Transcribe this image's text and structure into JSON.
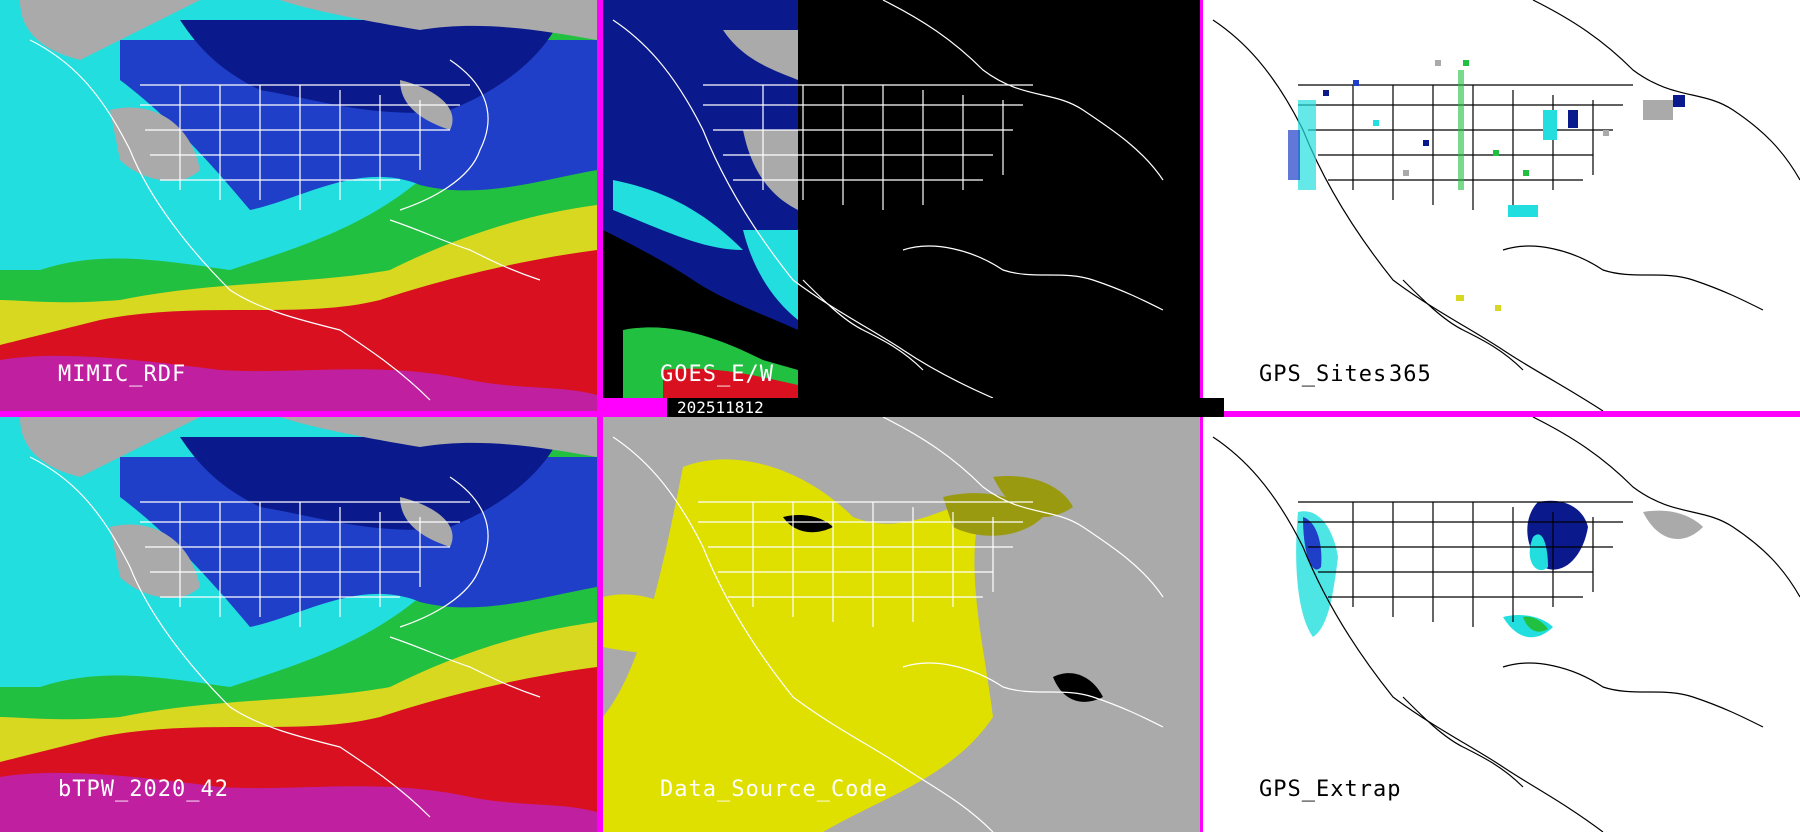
{
  "panels": {
    "mimic_rdf": {
      "label": "MIMIC_RDF"
    },
    "goes": {
      "label": "GOES_E/W"
    },
    "gps_sites": {
      "label": "GPS_Sites",
      "count": "365"
    },
    "btpw": {
      "label": "bTPW_2020_42"
    },
    "data_source": {
      "label": "Data_Source_Code"
    },
    "gps_extrap": {
      "label": "GPS_Extrap"
    }
  },
  "timestamp": "202511812",
  "colors": {
    "divider": "#ff00ff",
    "tpw_gray": "#aaaaaa",
    "tpw_blue_dark": "#0a1a8c",
    "tpw_blue": "#1f3fc8",
    "tpw_cyan": "#22dede",
    "tpw_green": "#22c040",
    "tpw_yellow": "#d8d820",
    "tpw_red": "#d81020",
    "tpw_magenta": "#c020a0",
    "source_gray": "#aaaaaa",
    "source_yellow": "#e0e000",
    "source_olive": "#9a9a10",
    "map_lines": "#ffffff",
    "map_lines_dark": "#000000"
  }
}
